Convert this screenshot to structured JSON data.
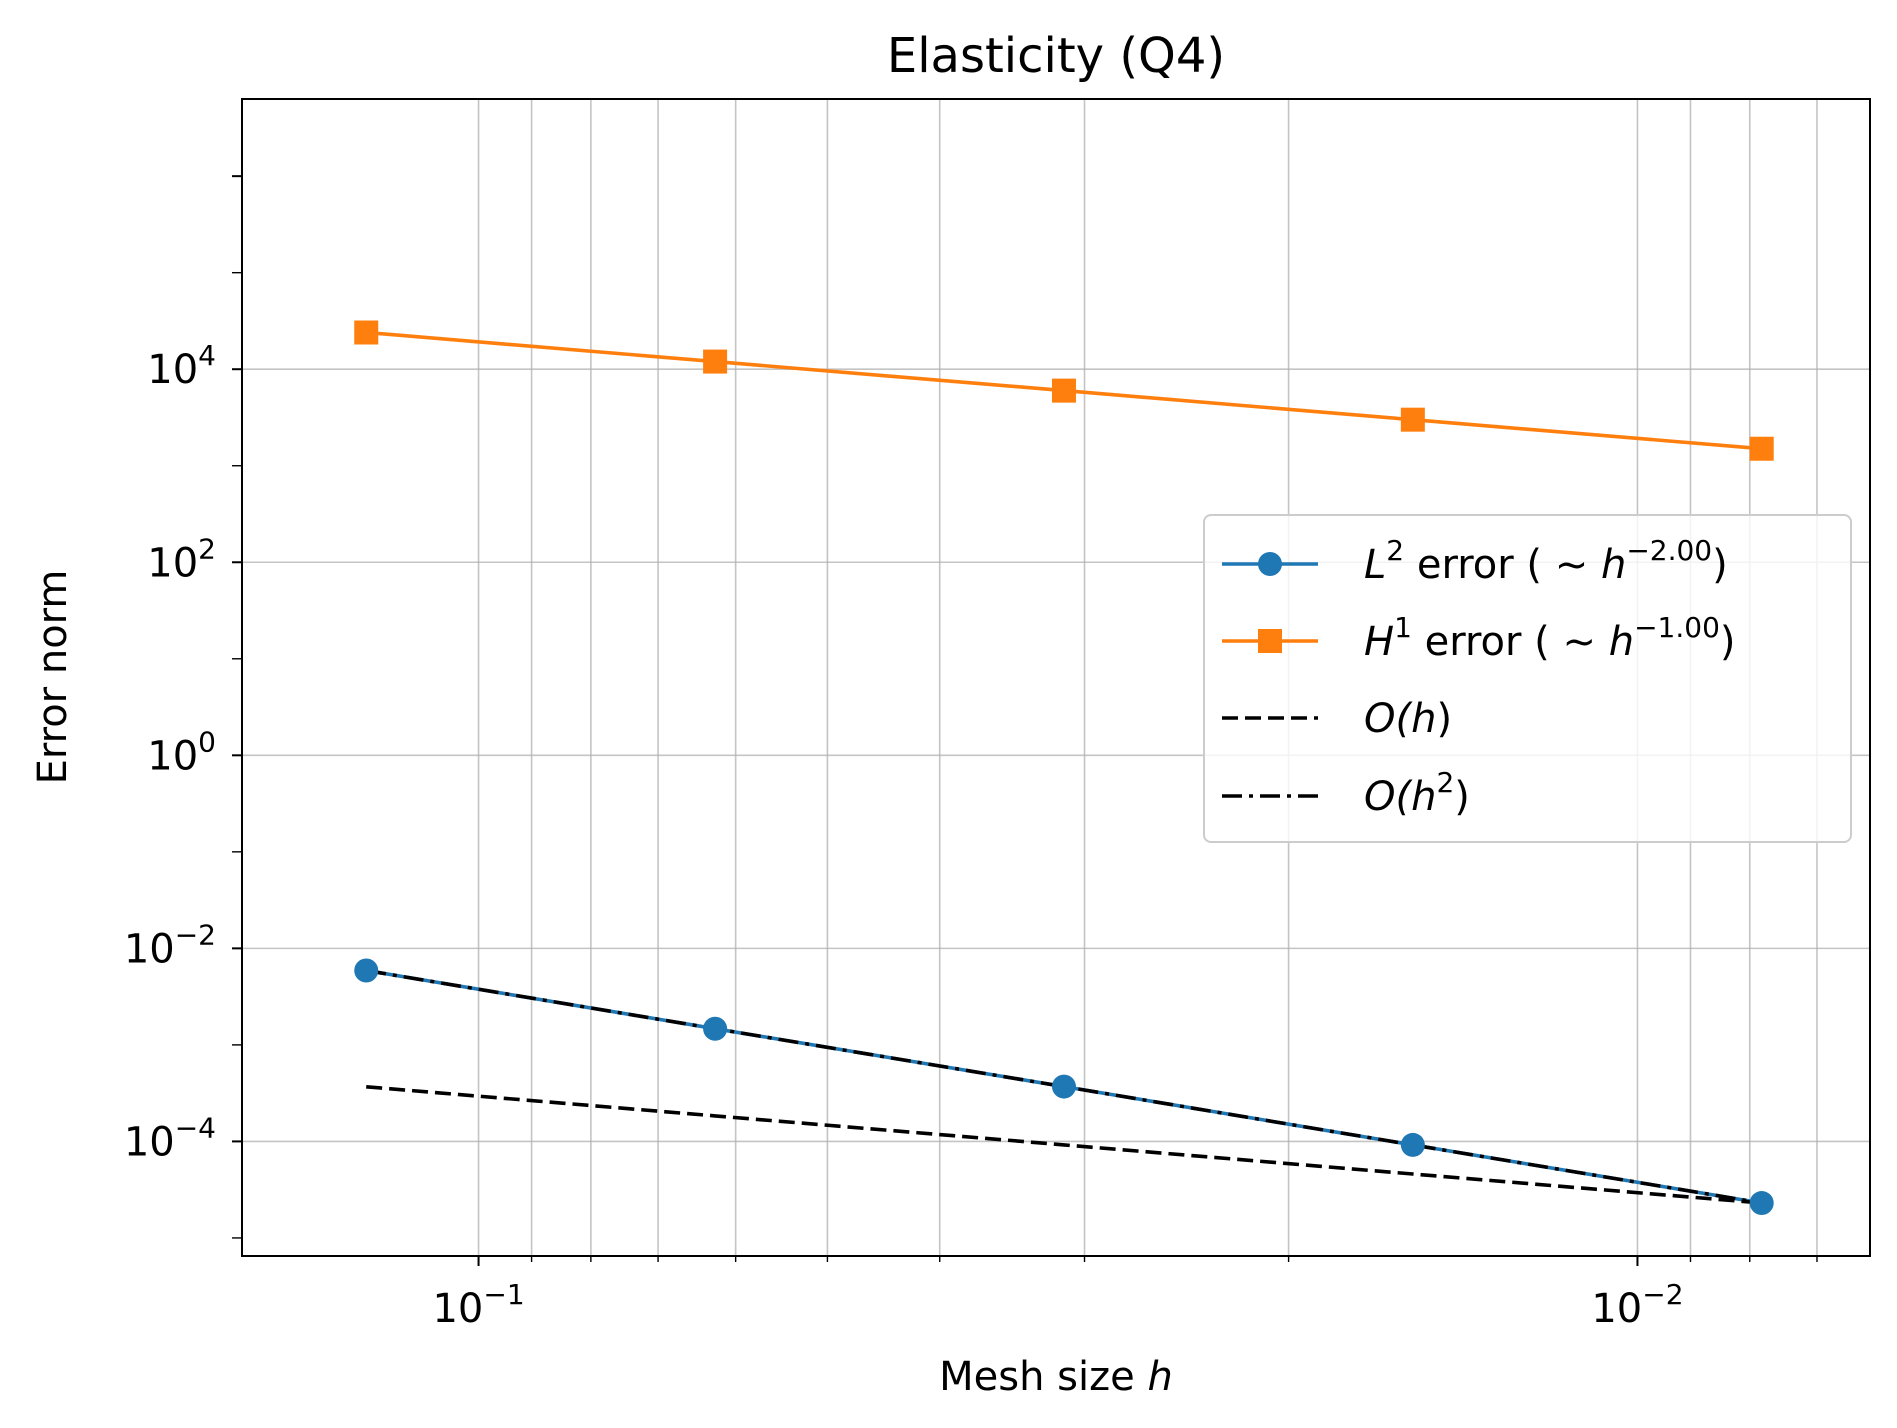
{
  "chart_data": {
    "type": "line",
    "title": "Elasticity (Q4)",
    "xlabel": {
      "text": "Mesh size ",
      "var": "h"
    },
    "ylabel": "Error norm",
    "x_scale": "log",
    "y_scale": "log",
    "x_inverted": true,
    "xlim": [
      0.16,
      0.0063
    ],
    "ylim": [
      6.5e-06,
      6300000
    ],
    "grid": true,
    "legend_position": "center-right",
    "x": [
      0.125,
      0.0625,
      0.03125,
      0.015625,
      0.0078125
    ],
    "series": [
      {
        "name": {
          "base": "L",
          "sup": "2",
          "mid": " error ( ~ ",
          "var": "h",
          "sup2": "−2.00",
          "tail": ")"
        },
        "values": [
          0.0059,
          0.00147,
          0.00037,
          9.2e-05,
          2.3e-05
        ],
        "color": "#1f77b4",
        "marker": "circle",
        "line": "solid"
      },
      {
        "name": {
          "base": "H",
          "sup": "1",
          "mid": " error ( ~ ",
          "var": "h",
          "sup2": "−1.00",
          "tail": ")"
        },
        "values": [
          24000,
          12000,
          6000,
          3000,
          1500
        ],
        "color": "#ff7f0e",
        "marker": "square",
        "line": "solid"
      },
      {
        "name": {
          "pre": "O(",
          "var": "h",
          "post": ")"
        },
        "values": [
          0.000368,
          0.000184,
          9.2e-05,
          4.6e-05,
          2.3e-05
        ],
        "color": "#000000",
        "marker": "none",
        "line": "dashed"
      },
      {
        "name": {
          "pre": "O(",
          "var": "h",
          "sup": "2",
          "post": ")"
        },
        "values": [
          0.0059,
          0.00147,
          0.00037,
          9.2e-05,
          2.3e-05
        ],
        "color": "#000000",
        "marker": "none",
        "line": "dashdot"
      }
    ],
    "x_ticks": [
      {
        "value": 0.1,
        "base": "10",
        "exp": "−1"
      },
      {
        "value": 0.01,
        "base": "10",
        "exp": "−2"
      }
    ],
    "y_ticks": [
      {
        "value": 0.0001,
        "base": "10",
        "exp": "−4"
      },
      {
        "value": 0.01,
        "base": "10",
        "exp": "−2"
      },
      {
        "value": 1,
        "base": "10",
        "exp": "0"
      },
      {
        "value": 100,
        "base": "10",
        "exp": "2"
      },
      {
        "value": 10000,
        "base": "10",
        "exp": "4"
      }
    ]
  }
}
